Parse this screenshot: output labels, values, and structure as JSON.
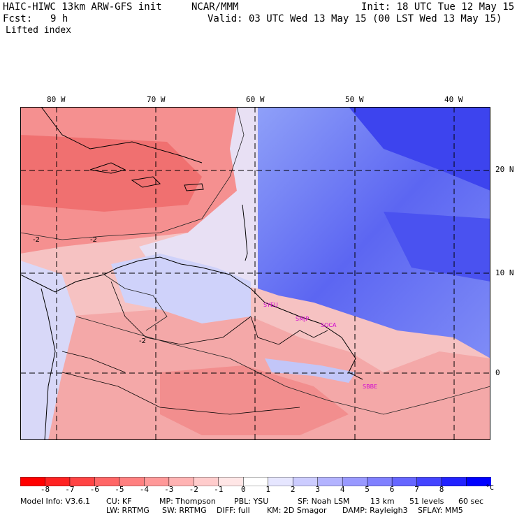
{
  "header": {
    "title_left": "HAIC-HIWC 13km ARW-GFS init",
    "org": "NCAR/MMM",
    "init": "Init: 18 UTC Tue 12 May 15",
    "fcst_label": "Fcst:",
    "fcst_value": "9 h",
    "valid": "Valid: 03 UTC Wed 13 May 15 (00 LST Wed 13 May 15)",
    "field": "Lifted index"
  },
  "map": {
    "longitude_labels": [
      "80 W",
      "70 W",
      "60 W",
      "50 W",
      "40 W"
    ],
    "latitude_labels": [
      "20 N",
      "10 N",
      "0"
    ],
    "contour_labels": [
      "-2",
      "-2",
      "-2"
    ],
    "stations": [
      "SYEU",
      "SMJP",
      "SOCA",
      "SBBE"
    ],
    "land_field_color": "#f4a0a0",
    "ocean_field_color": "#4848f0"
  },
  "colorbar": {
    "ticks": [
      "-8",
      "-7",
      "-6",
      "-5",
      "-4",
      "-3",
      "-2",
      "-1",
      "0",
      "1",
      "2",
      "3",
      "4",
      "5",
      "6",
      "7",
      "8"
    ],
    "unit": "°C",
    "colors": [
      "#ff0000",
      "#ff2222",
      "#ff4444",
      "#ff6666",
      "#ff8080",
      "#ff9999",
      "#ffb3b3",
      "#ffcccc",
      "#ffe6e6",
      "#ffffff",
      "#e6e6ff",
      "#ccccff",
      "#b3b3ff",
      "#9999ff",
      "#8080ff",
      "#6666ff",
      "#4444ff",
      "#2222ff",
      "#0000ff"
    ]
  },
  "footer": {
    "line1": {
      "model": "Model Info: V3.6.1",
      "cu": "CU: KF",
      "mp": "MP: Thompson",
      "pbl": "PBL: YSU",
      "sf": "SF: Noah LSM",
      "res": "13 km",
      "levels": "51 levels",
      "dt": "60 sec"
    },
    "line2": {
      "lw": "LW: RRTMG",
      "sw": "SW: RRTMG",
      "diff": "DIFF: full",
      "km": "KM: 2D Smagor",
      "damp": "DAMP: Rayleigh3",
      "sflay": "SFLAY: MM5"
    }
  }
}
